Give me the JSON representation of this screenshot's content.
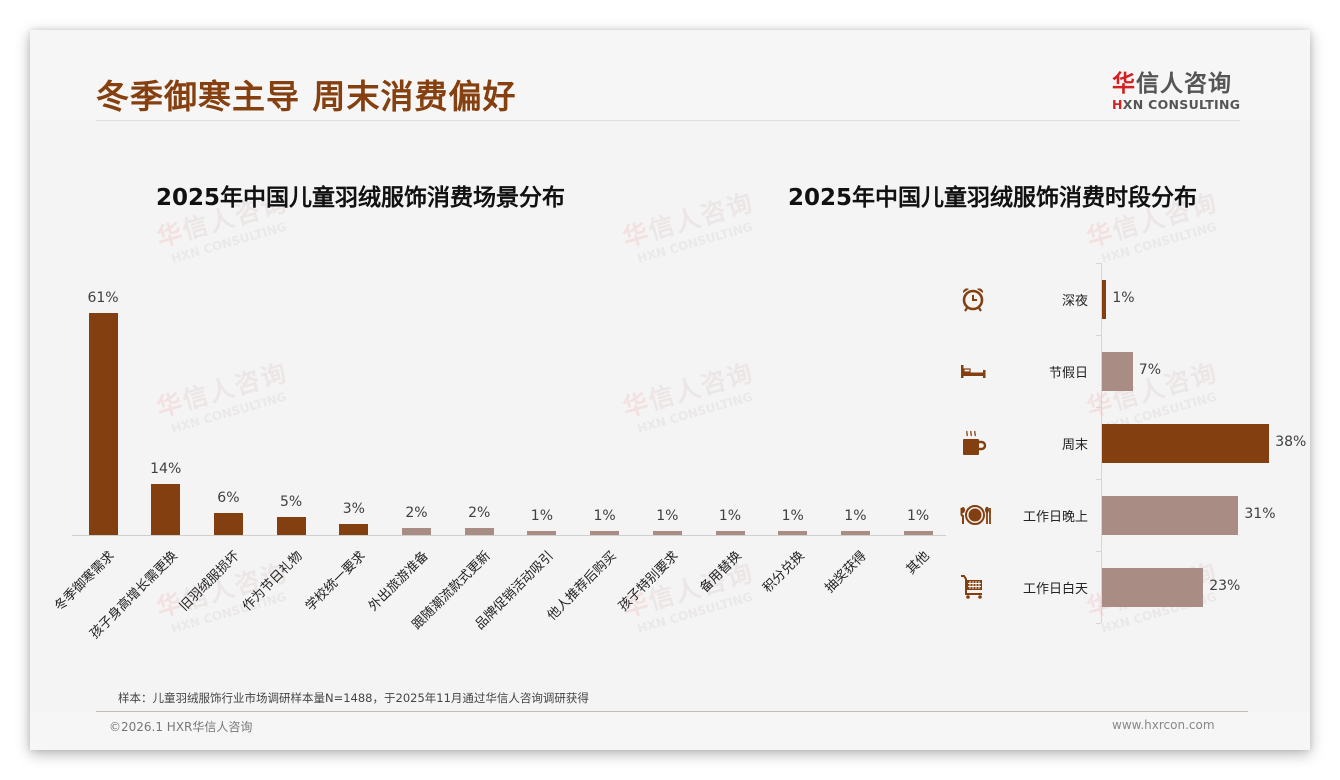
{
  "header": {
    "title": "冬季御寒主导 周末消费偏好",
    "logo_cn_first": "华",
    "logo_cn_rest": "信人咨询",
    "logo_en_first": "H",
    "logo_en_rest": "XN CONSULTING"
  },
  "watermark": {
    "cn_first": "华",
    "cn_rest": "信人咨询",
    "en": "HXN CONSULTING"
  },
  "colors": {
    "primary_brown": "#843f10",
    "secondary_taupe": "#a98d84",
    "title_brown": "#86400f",
    "logo_red": "#d42020"
  },
  "chart_data": [
    {
      "type": "bar",
      "title": "2025年中国儿童羽绒服饰消费场景分布",
      "xlabel": "",
      "ylabel": "",
      "ylim": [
        0,
        65
      ],
      "grid": false,
      "legend": null,
      "categories": [
        "冬季御寒需求",
        "孩子身高增长需更换",
        "旧羽绒服损坏",
        "作为节日礼物",
        "学校统一要求",
        "外出旅游准备",
        "跟随潮流款式更新",
        "品牌促销活动吸引",
        "他人推荐后购买",
        "孩子特别要求",
        "备用替换",
        "积分兑换",
        "抽奖获得",
        "其他"
      ],
      "values": [
        61,
        14,
        6,
        5,
        3,
        2,
        2,
        1,
        1,
        1,
        1,
        1,
        1,
        1
      ],
      "value_labels": [
        "61%",
        "14%",
        "6%",
        "5%",
        "3%",
        "2%",
        "2%",
        "1%",
        "1%",
        "1%",
        "1%",
        "1%",
        "1%",
        "1%"
      ],
      "bar_colors": [
        "#843f10",
        "#843f10",
        "#843f10",
        "#843f10",
        "#843f10",
        "#a98d84",
        "#a98d84",
        "#a98d84",
        "#a98d84",
        "#a98d84",
        "#a98d84",
        "#a98d84",
        "#a98d84",
        "#a98d84"
      ],
      "unit": "%"
    },
    {
      "type": "bar",
      "orientation": "horizontal",
      "title": "2025年中国儿童羽绒服饰消费时段分布",
      "xlabel": "",
      "ylabel": "",
      "xlim": [
        0,
        40
      ],
      "grid": false,
      "legend": null,
      "categories": [
        "深夜",
        "节假日",
        "周末",
        "工作日晚上",
        "工作日白天"
      ],
      "values": [
        1,
        7,
        38,
        31,
        23
      ],
      "value_labels": [
        "1%",
        "7%",
        "38%",
        "31%",
        "23%"
      ],
      "icons": [
        "alarm-clock-icon",
        "bed-icon",
        "coffee-cup-icon",
        "plate-cutlery-icon",
        "shopping-cart-icon"
      ],
      "bar_colors": [
        "#843f10",
        "#a98d84",
        "#843f10",
        "#a98d84",
        "#a98d84"
      ],
      "unit": "%"
    }
  ],
  "footer": {
    "footnote": "样本：儿童羽绒服饰行业市场调研样本量N=1488，于2025年11月通过华信人咨询调研获得",
    "copyright": "©2026.1 HXR华信人咨询",
    "website": "www.hxrcon.com"
  }
}
